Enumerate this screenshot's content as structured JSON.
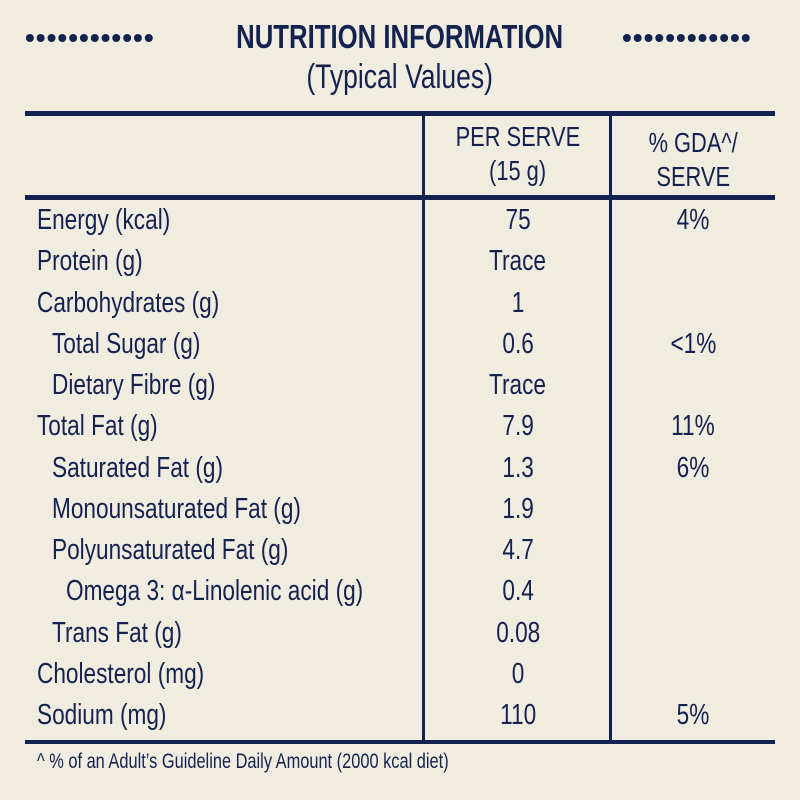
{
  "title": "NUTRITION INFORMATION",
  "subtitle": "(Typical Values)",
  "columns": {
    "per_serve": [
      "PER SERVE",
      "(15 g)"
    ],
    "gda": [
      "% GDA^/",
      "SERVE"
    ]
  },
  "rows": [
    {
      "label": "Energy (kcal)",
      "indent": 0,
      "per_serve": "75",
      "gda": "4%"
    },
    {
      "label": "Protein (g)",
      "indent": 0,
      "per_serve": "Trace",
      "gda": ""
    },
    {
      "label": "Carbohydrates (g)",
      "indent": 0,
      "per_serve": "1",
      "gda": ""
    },
    {
      "label": "Total Sugar (g)",
      "indent": 1,
      "per_serve": "0.6",
      "gda": "<1%"
    },
    {
      "label": "Dietary Fibre (g)",
      "indent": 1,
      "per_serve": "Trace",
      "gda": ""
    },
    {
      "label": "Total Fat (g)",
      "indent": 0,
      "per_serve": "7.9",
      "gda": "11%"
    },
    {
      "label": "Saturated Fat (g)",
      "indent": 1,
      "per_serve": "1.3",
      "gda": "6%"
    },
    {
      "label": "Monounsaturated Fat (g)",
      "indent": 1,
      "per_serve": "1.9",
      "gda": ""
    },
    {
      "label": "Polyunsaturated Fat (g)",
      "indent": 1,
      "per_serve": "4.7",
      "gda": ""
    },
    {
      "label": "Omega 3: α-Linolenic acid (g)",
      "indent": 2,
      "per_serve": "0.4",
      "gda": ""
    },
    {
      "label": "Trans Fat (g)",
      "indent": 1,
      "per_serve": "0.08",
      "gda": ""
    },
    {
      "label": "Cholesterol (mg)",
      "indent": 0,
      "per_serve": "0",
      "gda": ""
    },
    {
      "label": "Sodium (mg)",
      "indent": 0,
      "per_serve": "110",
      "gda": "5%"
    }
  ],
  "footnote": "^ % of an Adult’s Guideline Daily Amount (2000 kcal diet)",
  "colors": {
    "ink": "#13224f",
    "background": "#f1ece0"
  }
}
